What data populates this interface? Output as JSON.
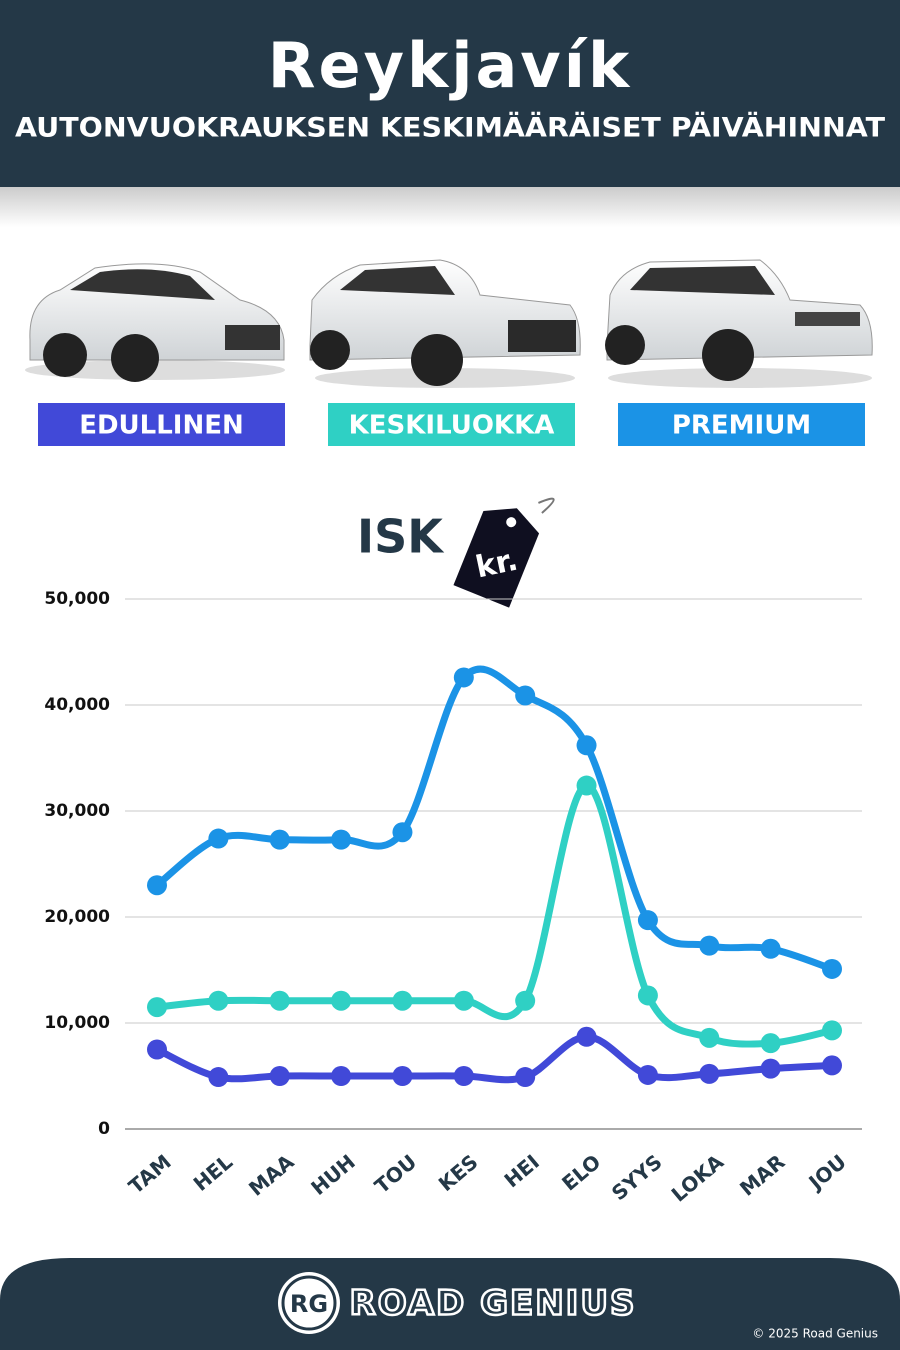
{
  "chart_data": {
    "type": "line",
    "title": "Reykjavík",
    "subtitle": "AUTONVUOKRAUKSEN KESKIMÄÄRÄISET PÄIVÄHINNAT",
    "ylabel": "ISK",
    "annotation": "kr.",
    "categories": [
      "TAM",
      "HEL",
      "MAA",
      "HUH",
      "TOU",
      "KES",
      "HEI",
      "ELO",
      "SYYS",
      "LOKA",
      "MAR",
      "JOU"
    ],
    "series": [
      {
        "name": "EDULLINEN",
        "color": "#4149d8",
        "values": [
          7500,
          4900,
          5000,
          5000,
          5000,
          5000,
          4900,
          8700,
          5100,
          5200,
          5700,
          6000
        ]
      },
      {
        "name": "KESKILUOKKA",
        "color": "#2fd0c4",
        "values": [
          11500,
          12100,
          12100,
          12100,
          12100,
          12100,
          12100,
          32400,
          12600,
          8600,
          8100,
          9300
        ]
      },
      {
        "name": "PREMIUM",
        "color": "#1b93e6",
        "values": [
          23000,
          27400,
          27300,
          27300,
          28000,
          42600,
          40900,
          36200,
          19700,
          17300,
          17000,
          15100
        ]
      }
    ],
    "ylim": [
      0,
      50000
    ],
    "yticks": [
      0,
      {
        "value": 10000,
        "label": "10,000"
      },
      {
        "value": 20000,
        "label": "20,000"
      },
      {
        "value": 30000,
        "label": "30,000"
      },
      {
        "value": 40000,
        "label": "40,000"
      },
      {
        "value": 50000,
        "label": "50,000"
      }
    ],
    "grid": true
  },
  "footer": {
    "logo": "RG",
    "brand": "ROAD GENIUS",
    "copyright": "© 2025 Road Genius"
  }
}
